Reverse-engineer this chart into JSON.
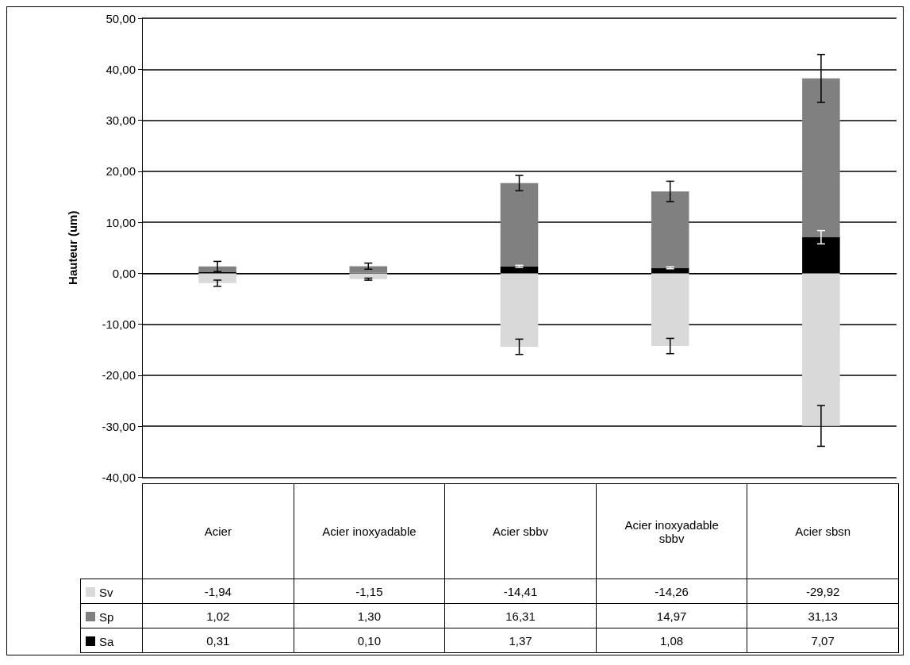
{
  "chart_data": {
    "type": "bar",
    "stacked": true,
    "ylabel": "Hauteur (um)",
    "categories": [
      "Acier",
      "Acier inoxyadable",
      "Acier sbbv",
      "Acier inoxyadable sbbv",
      "Acier sbsn"
    ],
    "series": [
      {
        "name": "Sa",
        "color": "#000000",
        "values": [
          0.31,
          0.1,
          1.37,
          1.08,
          7.07
        ],
        "value_labels": [
          "0,31",
          "0,10",
          "1,37",
          "1,08",
          "7,07"
        ],
        "errors": [
          null,
          null,
          0.2,
          0.2,
          1.3
        ]
      },
      {
        "name": "Sp",
        "color": "#808080",
        "values": [
          1.02,
          1.3,
          16.31,
          14.97,
          31.13
        ],
        "value_labels": [
          "1,02",
          "1,30",
          "16,31",
          "14,97",
          "31,13"
        ],
        "errors": [
          1.0,
          0.6,
          1.5,
          2.0,
          4.7
        ]
      },
      {
        "name": "Sv",
        "color": "#d9d9d9",
        "values": [
          -1.94,
          -1.15,
          -14.41,
          -14.26,
          -29.92
        ],
        "value_labels": [
          "-1,94",
          "-1,15",
          "-14,41",
          "-14,26",
          "-29,92"
        ],
        "errors": [
          0.6,
          0.2,
          1.5,
          1.5,
          4.0
        ]
      }
    ],
    "ylim": [
      -40,
      50
    ],
    "yticks": [
      {
        "value": -40,
        "label": "-40,00"
      },
      {
        "value": -30,
        "label": "-30,00"
      },
      {
        "value": -20,
        "label": "-20,00"
      },
      {
        "value": -10,
        "label": "-10,00"
      },
      {
        "value": 0,
        "label": "0,00"
      },
      {
        "value": 10,
        "label": "10,00"
      },
      {
        "value": 20,
        "label": "20,00"
      },
      {
        "value": 30,
        "label": "30,00"
      },
      {
        "value": 40,
        "label": "40,00"
      },
      {
        "value": 50,
        "label": "50,00"
      }
    ],
    "grid": "y",
    "legend": "bottom left"
  }
}
